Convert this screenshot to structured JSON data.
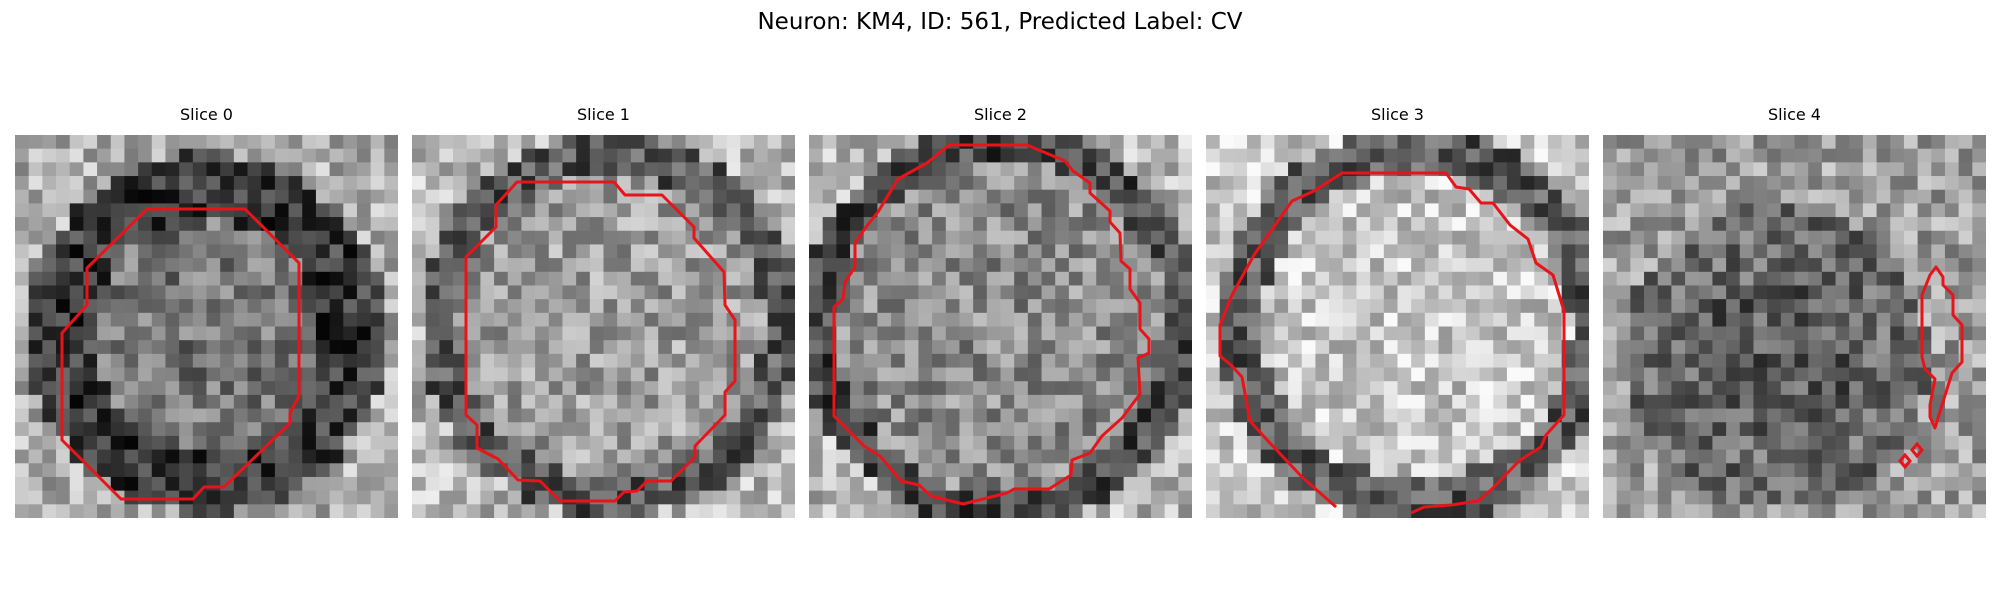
{
  "figure": {
    "title": "Neuron: KM4, ID: 561, Predicted Label: CV"
  },
  "panels": [
    {
      "title": "Slice 0"
    },
    {
      "title": "Slice 1"
    },
    {
      "title": "Slice 2"
    },
    {
      "title": "Slice 3"
    },
    {
      "title": "Slice 4"
    }
  ],
  "colors": {
    "contour": "#e8141a",
    "background": "#ffffff"
  }
}
